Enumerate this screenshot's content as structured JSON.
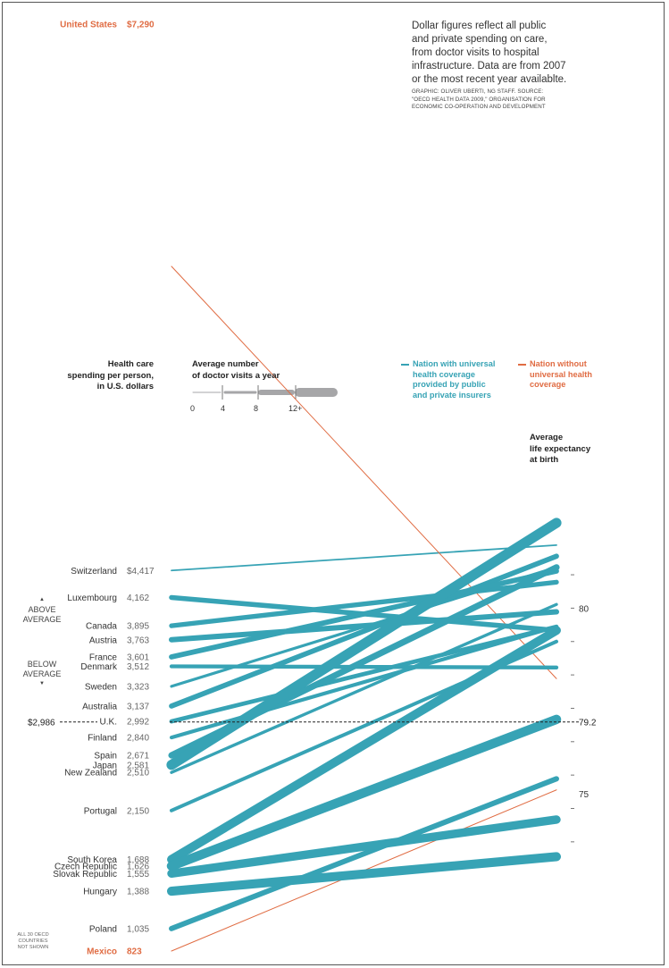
{
  "note": {
    "lines": [
      "Dollar figures reflect all public",
      "and private spending on care,",
      "from doctor visits to hospital",
      "infrastructure. Data are from 2007",
      "or the most recent year availablte."
    ],
    "credit_lines": [
      "GRAPHIC: OLIVER UBERTI, NG STAFF. SOURCE:",
      "\"OECD HEALTH DATA 2009,\" ORGANISATION FOR",
      "ECONOMIC CO-OPERATION AND DEVELOPMENT"
    ]
  },
  "headers": {
    "spending": [
      "Health care",
      "spending per person,",
      "in U.S. dollars"
    ],
    "visits": [
      "Average number",
      "of doctor visits a year"
    ],
    "life": [
      "Average",
      "life expectancy",
      "at birth"
    ]
  },
  "visits_scale": {
    "ticks": [
      "0",
      "4",
      "8",
      "12+"
    ],
    "widths": [
      1,
      3,
      6,
      10
    ],
    "color": "#a6a6a8"
  },
  "legend": {
    "universal": [
      "Nation with universal",
      "health coverage",
      "provided by public",
      "and private insurers"
    ],
    "non_universal": [
      "Nation without",
      "universal health",
      "coverage"
    ]
  },
  "average": {
    "value_label": "$2,986",
    "above": [
      "ABOVE",
      "AVERAGE"
    ],
    "below": [
      "BELOW",
      "AVERAGE"
    ],
    "arrow_up": "▲",
    "arrow_down": "▼"
  },
  "omitted_note": [
    "ALL 30 OECD",
    "COUNTRIES",
    "NOT SHOWN"
  ],
  "colors": {
    "universal": "#37a3b5",
    "non_universal": "#e06c43",
    "dashed": "#222222",
    "tick": "#777777"
  },
  "chart_data": {
    "type": "slope",
    "left_axis": "Health care spending per person, in U.S. dollars",
    "right_axis": "Average life expectancy at birth",
    "spending_average": 2986,
    "spending_average_label": "$2,986",
    "life_axis_range": [
      73.2,
      82.3
    ],
    "life_tick_labels": [
      {
        "value": 80,
        "label": "80"
      },
      {
        "value": 79.2,
        "label": "79.2"
      },
      {
        "value": 75,
        "label": "75"
      }
    ],
    "series": [
      {
        "name": "United States",
        "spend_label": "$7,290",
        "spending": 7290,
        "life": 78.1,
        "visits": 4.0,
        "universal": false
      },
      {
        "name": "Switzerland",
        "spend_label": "$4,417",
        "spending": 4417,
        "life": 81.7,
        "visits": 1.0,
        "universal": true
      },
      {
        "name": "Luxembourg",
        "spend_label": "4,162",
        "spending": 4162,
        "life": 79.4,
        "visits": 6.1,
        "universal": true
      },
      {
        "name": "Canada",
        "spend_label": "3,895",
        "spending": 3895,
        "life": 80.7,
        "visits": 5.8,
        "universal": true
      },
      {
        "name": "Austria",
        "spend_label": "3,763",
        "spending": 3763,
        "life": 79.9,
        "visits": 6.7,
        "universal": true
      },
      {
        "name": "France",
        "spend_label": "3,601",
        "spending": 3601,
        "life": 81.0,
        "visits": 6.4,
        "universal": true
      },
      {
        "name": "Denmark",
        "spend_label": "3,512",
        "spending": 3512,
        "life": 78.4,
        "visits": 4.4,
        "universal": true
      },
      {
        "name": "Sweden",
        "spend_label": "3,323",
        "spending": 3323,
        "life": 81.1,
        "visits": 2.9,
        "universal": true
      },
      {
        "name": "Australia",
        "spend_label": "3,137",
        "spending": 3137,
        "life": 81.4,
        "visits": 6.3,
        "universal": true
      },
      {
        "name": "U.K.",
        "spend_label": "2,992",
        "spending": 2992,
        "life": 79.5,
        "visits": 5.0,
        "universal": true
      },
      {
        "name": "Finland",
        "spend_label": "2,840",
        "spending": 2840,
        "life": 79.5,
        "visits": 4.2,
        "universal": true
      },
      {
        "name": "Spain",
        "spend_label": "2,671",
        "spending": 2671,
        "life": 81.1,
        "visits": 8.1,
        "universal": true
      },
      {
        "name": "Japan",
        "spend_label": "2,581",
        "spending": 2581,
        "life": 82.3,
        "visits": 13.6,
        "universal": true
      },
      {
        "name": "New Zealand",
        "spend_label": "2,510",
        "spending": 2510,
        "life": 80.1,
        "visits": 3.2,
        "universal": true
      },
      {
        "name": "Portugal",
        "spend_label": "2,150",
        "spending": 2150,
        "life": 79.1,
        "visits": 4.0,
        "universal": true
      },
      {
        "name": "South Korea",
        "spend_label": "1,688",
        "spending": 1688,
        "life": 79.4,
        "visits": 11.8,
        "universal": true
      },
      {
        "name": "Czech Republic",
        "spend_label": "1,626",
        "spending": 1626,
        "life": 77.0,
        "visits": 12.6,
        "universal": true
      },
      {
        "name": "Slovak Republic",
        "spend_label": "1,555",
        "spending": 1555,
        "life": 74.3,
        "visits": 11.2,
        "universal": true
      },
      {
        "name": "Hungary",
        "spend_label": "1,388",
        "spending": 1388,
        "life": 73.3,
        "visits": 12.1,
        "universal": true
      },
      {
        "name": "Poland",
        "spend_label": "1,035",
        "spending": 1035,
        "life": 75.4,
        "visits": 6.6,
        "universal": true
      },
      {
        "name": "Mexico",
        "spend_label": "823",
        "spending": 823,
        "life": 75.1,
        "visits": 2.5,
        "universal": false
      }
    ]
  }
}
